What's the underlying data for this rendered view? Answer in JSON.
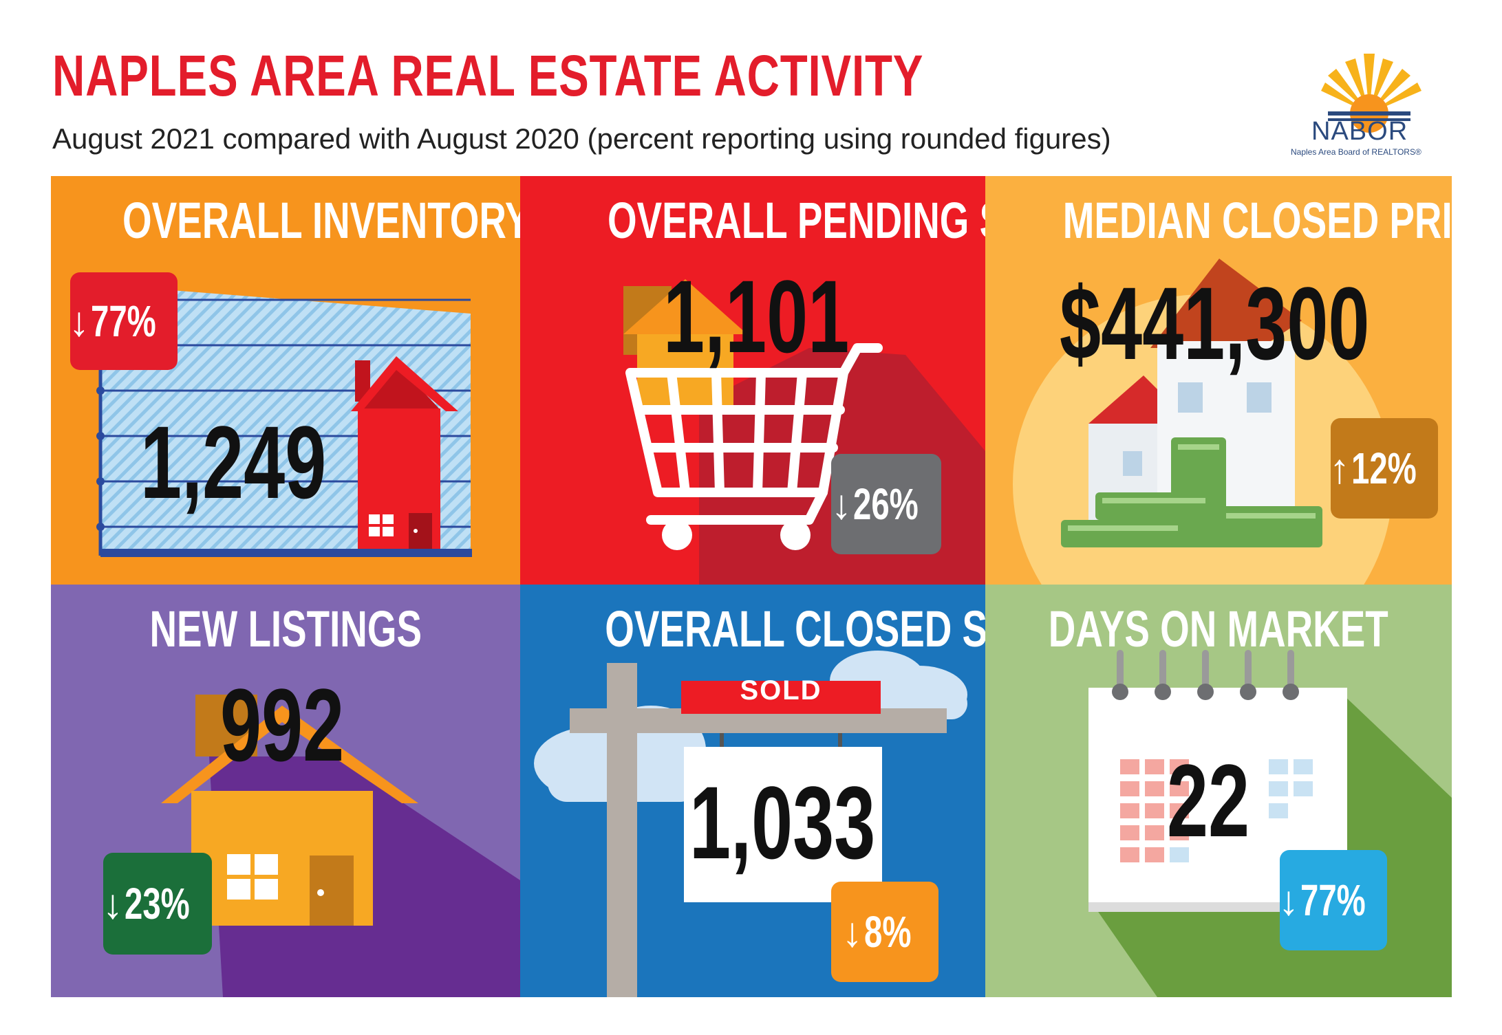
{
  "header": {
    "title": "NAPLES AREA REAL ESTATE ACTIVITY",
    "subtitle": "August 2021 compared with August 2020 (percent reporting using rounded figures)"
  },
  "logo": {
    "name": "NABOR",
    "tagline": "Naples Area Board of REALTORS®"
  },
  "colors": {
    "title_red": "#e31d2b",
    "inventory_bg": "#f7941d",
    "pending_bg": "#ed1c24",
    "median_bg": "#fbb040",
    "listings_bg": "#8067b1",
    "closed_bg": "#1b75bc",
    "days_bg": "#a6c785"
  },
  "panels": {
    "inventory": {
      "title": "OVERALL INVENTORY",
      "value": "1,249",
      "change_arrow": "↓",
      "change": "77%",
      "badge_color": "#e31d2b"
    },
    "pending": {
      "title": "OVERALL PENDING SALES",
      "value": "1,101",
      "change_arrow": "↓",
      "change": "26%",
      "badge_color": "#6d6e71"
    },
    "median": {
      "title": "MEDIAN CLOSED PRICE",
      "value": "$441,300",
      "change_arrow": "↑",
      "change": "12%",
      "badge_color": "#c27a1a"
    },
    "listings": {
      "title": "NEW LISTINGS",
      "value": "992",
      "change_arrow": "↓",
      "change": "23%",
      "badge_color": "#1b6f3a"
    },
    "closed": {
      "title": "OVERALL CLOSED SALES",
      "value": "1,033",
      "sign": "SOLD",
      "change_arrow": "↓",
      "change": "8%",
      "badge_color": "#f7941d"
    },
    "days": {
      "title": "DAYS ON MARKET",
      "value": "22",
      "change_arrow": "↓",
      "change": "77%",
      "badge_color": "#27aae1"
    }
  }
}
